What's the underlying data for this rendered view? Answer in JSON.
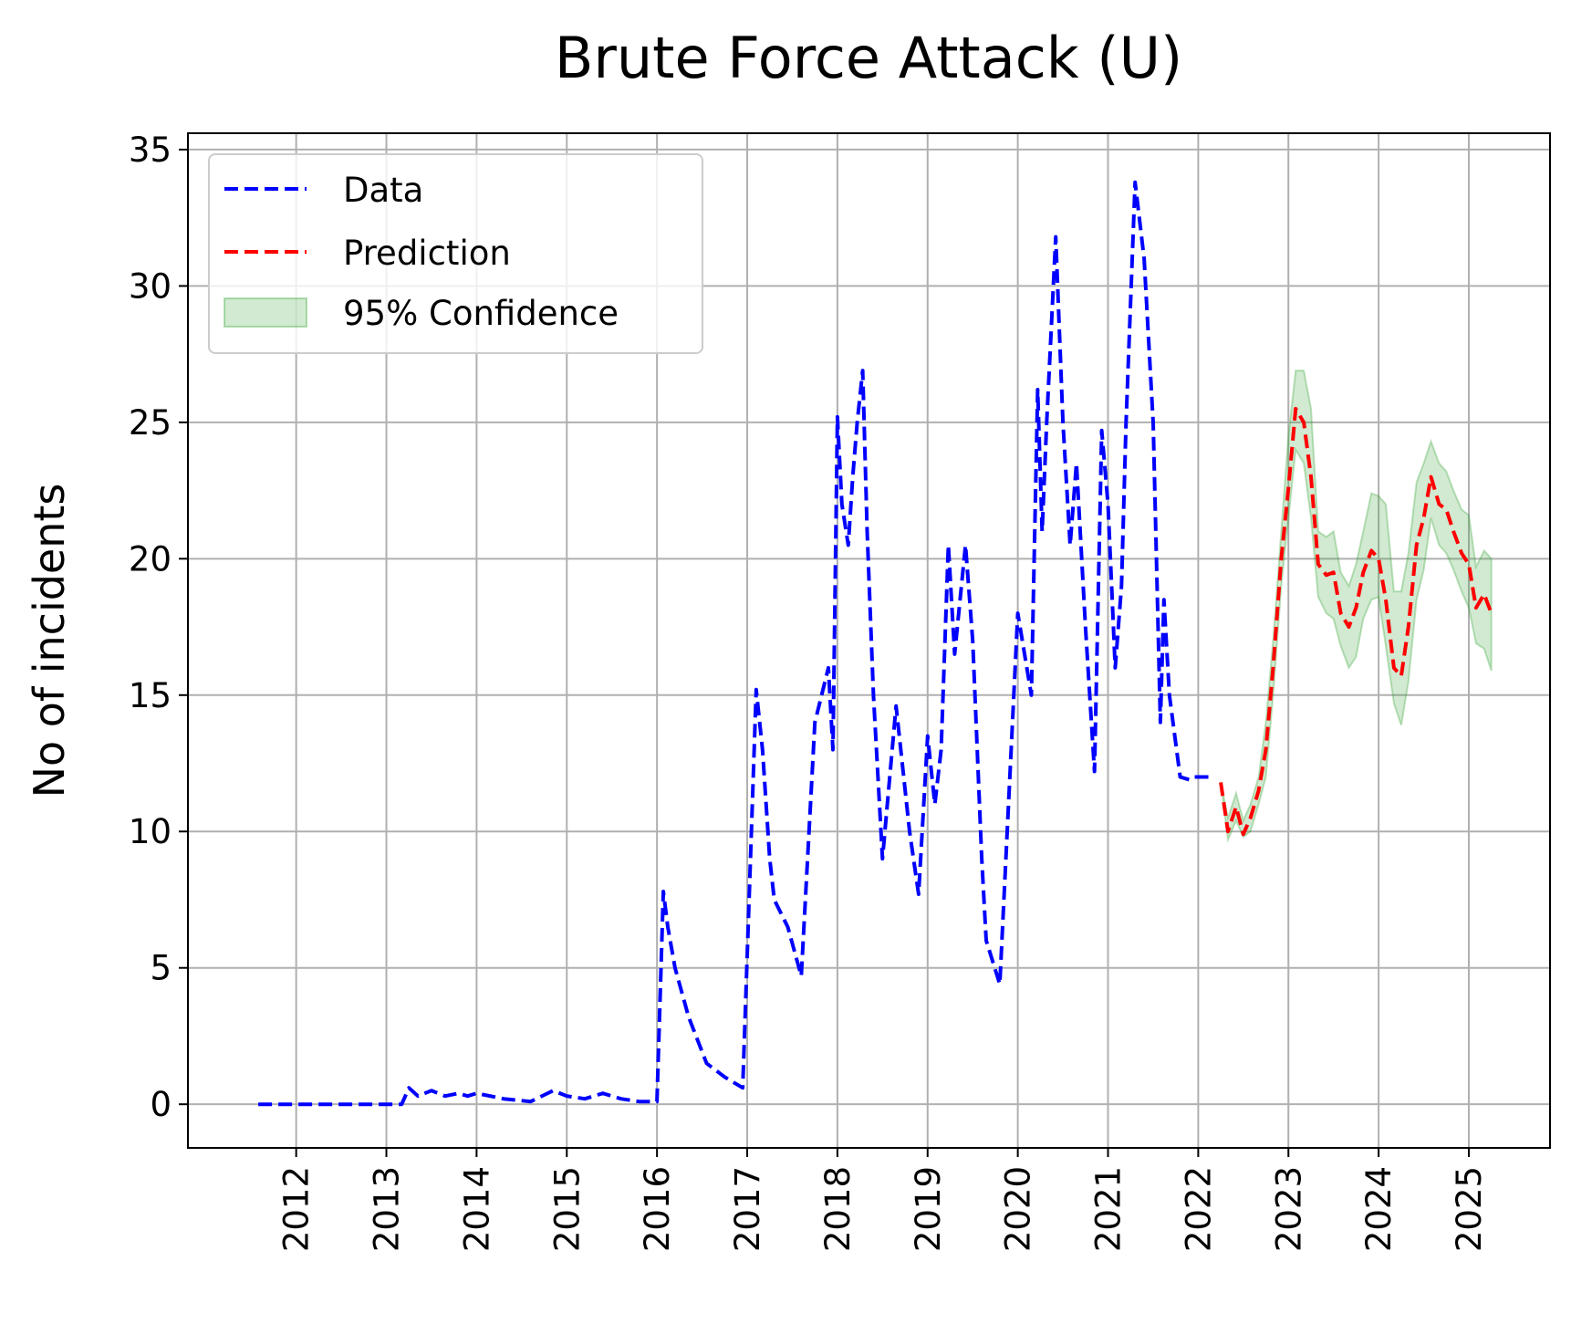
{
  "chart_data": {
    "type": "line",
    "title": "Brute Force Attack (U)",
    "xlabel": "",
    "ylabel": "No of incidents",
    "xlim": [
      2010.8,
      2025.9
    ],
    "ylim": [
      -1.6,
      35.6
    ],
    "yticks": [
      0,
      5,
      10,
      15,
      20,
      25,
      30,
      35
    ],
    "xticks": [
      2012,
      2013,
      2014,
      2015,
      2016,
      2017,
      2018,
      2019,
      2020,
      2021,
      2022,
      2023,
      2024,
      2025
    ],
    "grid": true,
    "legend_position": "top-left",
    "series": [
      {
        "name": "Data",
        "color": "#0000ff",
        "style": "dashed",
        "x": [
          2011.58,
          2012.0,
          2012.5,
          2013.0,
          2013.17,
          2013.25,
          2013.35,
          2013.5,
          2013.65,
          2013.8,
          2013.9,
          2014.0,
          2014.3,
          2014.6,
          2014.85,
          2015.0,
          2015.2,
          2015.4,
          2015.6,
          2015.8,
          2016.0,
          2016.07,
          2016.12,
          2016.2,
          2016.35,
          2016.55,
          2016.75,
          2016.95,
          2017.1,
          2017.17,
          2017.25,
          2017.3,
          2017.45,
          2017.6,
          2017.75,
          2017.9,
          2017.95,
          2018.0,
          2018.05,
          2018.12,
          2018.17,
          2018.22,
          2018.28,
          2018.33,
          2018.4,
          2018.5,
          2018.65,
          2018.8,
          2018.9,
          2019.0,
          2019.08,
          2019.15,
          2019.23,
          2019.3,
          2019.42,
          2019.5,
          2019.6,
          2019.65,
          2019.8,
          2020.0,
          2020.15,
          2020.22,
          2020.27,
          2020.32,
          2020.42,
          2020.5,
          2020.58,
          2020.65,
          2020.75,
          2020.85,
          2020.93,
          2021.0,
          2021.08,
          2021.15,
          2021.2,
          2021.3,
          2021.4,
          2021.5,
          2021.58,
          2021.62,
          2021.68,
          2021.8,
          2021.9,
          2021.95,
          2022.0,
          2022.05,
          2022.12
        ],
        "values": [
          0,
          0,
          0,
          0,
          0,
          0.6,
          0.3,
          0.5,
          0.3,
          0.4,
          0.3,
          0.4,
          0.2,
          0.1,
          0.5,
          0.3,
          0.2,
          0.4,
          0.2,
          0.1,
          0.1,
          7.8,
          6.5,
          5.0,
          3.2,
          1.5,
          1.0,
          0.6,
          15.2,
          13.0,
          9.0,
          7.5,
          6.5,
          4.7,
          14.0,
          16.0,
          13.0,
          25.2,
          22.0,
          20.5,
          23.0,
          25.0,
          26.9,
          21.0,
          15.0,
          9.0,
          14.6,
          10.0,
          7.7,
          13.5,
          11.0,
          13.0,
          20.5,
          16.5,
          20.5,
          17.0,
          9.0,
          6.0,
          4.4,
          18.0,
          15.0,
          26.2,
          21.0,
          25.0,
          31.8,
          25.0,
          20.5,
          23.5,
          17.5,
          12.2,
          24.7,
          22.0,
          16.0,
          19.0,
          25.0,
          33.8,
          31.0,
          25.0,
          14.0,
          18.5,
          15.0,
          12.0,
          11.9,
          12.0,
          12.0,
          12.0,
          12.0
        ]
      },
      {
        "name": "Prediction",
        "color": "#ff0000",
        "style": "dashed",
        "x": [
          2022.25,
          2022.33,
          2022.42,
          2022.5,
          2022.58,
          2022.67,
          2022.75,
          2022.83,
          2022.92,
          2023.0,
          2023.08,
          2023.17,
          2023.25,
          2023.33,
          2023.42,
          2023.5,
          2023.58,
          2023.67,
          2023.75,
          2023.83,
          2023.92,
          2024.0,
          2024.08,
          2024.17,
          2024.25,
          2024.33,
          2024.42,
          2024.5,
          2024.58,
          2024.67,
          2024.75,
          2024.83,
          2024.92,
          2025.0,
          2025.08,
          2025.17,
          2025.25
        ],
        "values": [
          11.8,
          10.0,
          10.9,
          9.9,
          10.5,
          11.5,
          13.0,
          16.0,
          20.0,
          22.6,
          25.5,
          25.0,
          23.0,
          19.8,
          19.4,
          19.5,
          18.0,
          17.5,
          18.2,
          19.5,
          20.3,
          20.0,
          18.5,
          16.0,
          15.7,
          17.5,
          20.5,
          21.5,
          23.0,
          22.0,
          21.8,
          21.0,
          20.2,
          19.8,
          18.2,
          18.7,
          18.0
        ]
      }
    ],
    "confidence": {
      "name": "95% Confidence",
      "color": "#2ca02c",
      "x": [
        2022.25,
        2022.33,
        2022.42,
        2022.5,
        2022.58,
        2022.67,
        2022.75,
        2022.83,
        2022.92,
        2023.0,
        2023.08,
        2023.17,
        2023.25,
        2023.33,
        2023.42,
        2023.5,
        2023.58,
        2023.67,
        2023.75,
        2023.83,
        2023.92,
        2024.0,
        2024.08,
        2024.17,
        2024.25,
        2024.33,
        2024.42,
        2024.5,
        2024.58,
        2024.67,
        2024.75,
        2024.83,
        2024.92,
        2025.0,
        2025.08,
        2025.17,
        2025.25
      ],
      "upper": [
        11.8,
        10.5,
        11.4,
        10.4,
        11.0,
        12.0,
        14.0,
        17.0,
        21.0,
        24.5,
        26.9,
        26.9,
        25.5,
        21.0,
        20.8,
        21.0,
        19.5,
        19.0,
        19.8,
        21.0,
        22.4,
        22.3,
        22.0,
        18.8,
        18.8,
        20.2,
        22.8,
        23.5,
        24.3,
        23.5,
        23.2,
        22.5,
        21.8,
        21.6,
        19.7,
        20.3,
        20.0
      ],
      "lower": [
        11.8,
        9.7,
        10.4,
        9.8,
        10.0,
        11.0,
        12.0,
        15.0,
        19.0,
        21.5,
        24.0,
        23.5,
        21.5,
        18.6,
        18.0,
        17.8,
        16.8,
        16.0,
        16.4,
        17.8,
        18.5,
        18.6,
        16.8,
        14.7,
        13.9,
        15.5,
        18.5,
        19.6,
        21.5,
        20.5,
        20.2,
        19.6,
        18.8,
        18.2,
        16.9,
        16.7,
        15.9
      ]
    }
  }
}
